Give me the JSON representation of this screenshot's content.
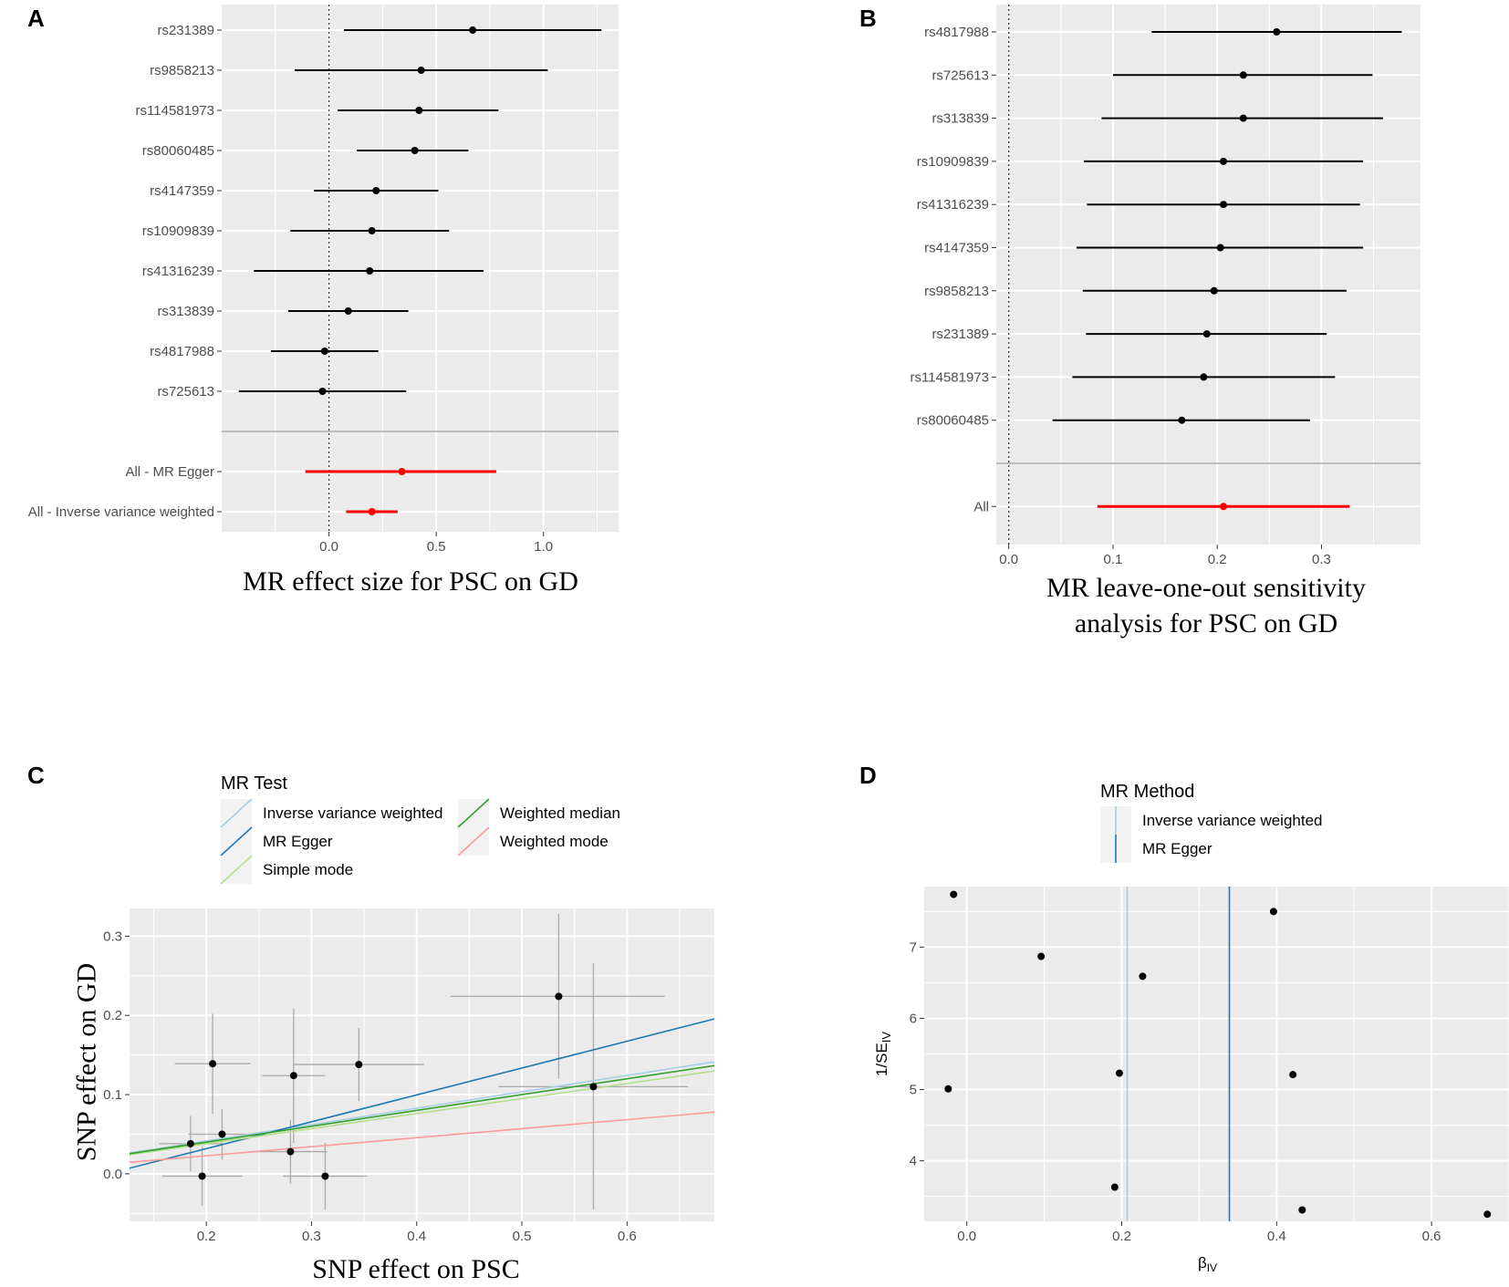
{
  "panels": {
    "a": {
      "letter": "A",
      "xtitle": "MR effect size for PSC on GD"
    },
    "b": {
      "letter": "B",
      "xtitle_line1": "MR leave-one-out sensitivity",
      "xtitle_line2": "analysis for PSC on GD"
    },
    "c": {
      "letter": "C",
      "xtitle": "SNP effect on PSC",
      "ytitle": "SNP effect on GD"
    },
    "d": {
      "letter": "D"
    }
  },
  "chart_data": [
    {
      "id": "A",
      "type": "forest",
      "title": "",
      "xlabel": "MR effect size for PSC on GD",
      "xlim": [
        -0.5,
        1.35
      ],
      "xticks": [
        0.0,
        0.5,
        1.0
      ],
      "xtick_labels": [
        "0.0",
        "0.5",
        "1.0"
      ],
      "reference_line": 0,
      "rows": [
        {
          "label": "rs231389",
          "est": 0.67,
          "lo": 0.07,
          "hi": 1.27,
          "color": "#000000"
        },
        {
          "label": "rs9858213",
          "est": 0.43,
          "lo": -0.16,
          "hi": 1.02,
          "color": "#000000"
        },
        {
          "label": "rs114581973",
          "est": 0.42,
          "lo": 0.04,
          "hi": 0.79,
          "color": "#000000"
        },
        {
          "label": "rs80060485",
          "est": 0.4,
          "lo": 0.13,
          "hi": 0.65,
          "color": "#000000"
        },
        {
          "label": "rs4147359",
          "est": 0.22,
          "lo": -0.07,
          "hi": 0.51,
          "color": "#000000"
        },
        {
          "label": "rs10909839",
          "est": 0.2,
          "lo": -0.18,
          "hi": 0.56,
          "color": "#000000"
        },
        {
          "label": "rs41316239",
          "est": 0.19,
          "lo": -0.35,
          "hi": 0.72,
          "color": "#000000"
        },
        {
          "label": "rs313839",
          "est": 0.09,
          "lo": -0.19,
          "hi": 0.37,
          "color": "#000000"
        },
        {
          "label": "rs4817988",
          "est": -0.02,
          "lo": -0.27,
          "hi": 0.23,
          "color": "#000000"
        },
        {
          "label": "rs725613",
          "est": -0.03,
          "lo": -0.42,
          "hi": 0.36,
          "color": "#000000"
        },
        {
          "label": "",
          "separator": true
        },
        {
          "label": "All - MR Egger",
          "est": 0.34,
          "lo": -0.11,
          "hi": 0.78,
          "color": "#ff0000"
        },
        {
          "label": "All - Inverse variance weighted",
          "est": 0.2,
          "lo": 0.08,
          "hi": 0.32,
          "color": "#ff0000"
        }
      ]
    },
    {
      "id": "B",
      "type": "forest",
      "title": "",
      "xlabel": "MR leave-one-out sensitivity analysis for PSC on GD",
      "xlim": [
        -0.012,
        0.395
      ],
      "xticks": [
        0.0,
        0.1,
        0.2,
        0.3
      ],
      "xtick_labels": [
        "0.0",
        "0.1",
        "0.2",
        "0.3"
      ],
      "reference_line": 0,
      "rows": [
        {
          "label": "rs4817988",
          "est": 0.257,
          "lo": 0.137,
          "hi": 0.377,
          "color": "#000000"
        },
        {
          "label": "rs725613",
          "est": 0.225,
          "lo": 0.1,
          "hi": 0.349,
          "color": "#000000"
        },
        {
          "label": "rs313839",
          "est": 0.225,
          "lo": 0.089,
          "hi": 0.359,
          "color": "#000000"
        },
        {
          "label": "rs10909839",
          "est": 0.206,
          "lo": 0.072,
          "hi": 0.34,
          "color": "#000000"
        },
        {
          "label": "rs41316239",
          "est": 0.206,
          "lo": 0.075,
          "hi": 0.337,
          "color": "#000000"
        },
        {
          "label": "rs4147359",
          "est": 0.203,
          "lo": 0.065,
          "hi": 0.34,
          "color": "#000000"
        },
        {
          "label": "rs9858213",
          "est": 0.197,
          "lo": 0.071,
          "hi": 0.324,
          "color": "#000000"
        },
        {
          "label": "rs231389",
          "est": 0.19,
          "lo": 0.074,
          "hi": 0.305,
          "color": "#000000"
        },
        {
          "label": "rs114581973",
          "est": 0.187,
          "lo": 0.061,
          "hi": 0.313,
          "color": "#000000"
        },
        {
          "label": "rs80060485",
          "est": 0.166,
          "lo": 0.042,
          "hi": 0.289,
          "color": "#000000"
        },
        {
          "label": "",
          "separator": true
        },
        {
          "label": "All",
          "est": 0.206,
          "lo": 0.085,
          "hi": 0.327,
          "color": "#ff0000"
        }
      ]
    },
    {
      "id": "C",
      "type": "scatter",
      "title": "",
      "xlabel": "SNP effect on PSC",
      "ylabel": "SNP effect on GD",
      "xlim": [
        0.127,
        0.683
      ],
      "ylim": [
        -0.06,
        0.335
      ],
      "xticks": [
        0.2,
        0.3,
        0.4,
        0.5,
        0.6
      ],
      "yticks": [
        0.0,
        0.1,
        0.2,
        0.3
      ],
      "legend_title": "MR Test",
      "legend_position": "top",
      "points": [
        {
          "x": 0.535,
          "y": 0.224,
          "xlo": 0.432,
          "xhi": 0.636,
          "ylo": 0.12,
          "yhi": 0.328
        },
        {
          "x": 0.568,
          "y": 0.11,
          "xlo": 0.478,
          "xhi": 0.658,
          "ylo": -0.045,
          "yhi": 0.266
        },
        {
          "x": 0.206,
          "y": 0.139,
          "xlo": 0.17,
          "xhi": 0.242,
          "ylo": 0.076,
          "yhi": 0.202
        },
        {
          "x": 0.345,
          "y": 0.138,
          "xlo": 0.283,
          "xhi": 0.407,
          "ylo": 0.092,
          "yhi": 0.184
        },
        {
          "x": 0.283,
          "y": 0.124,
          "xlo": 0.253,
          "xhi": 0.313,
          "ylo": 0.039,
          "yhi": 0.209
        },
        {
          "x": 0.215,
          "y": 0.05,
          "xlo": 0.183,
          "xhi": 0.247,
          "ylo": 0.018,
          "yhi": 0.082
        },
        {
          "x": 0.185,
          "y": 0.038,
          "xlo": 0.155,
          "xhi": 0.215,
          "ylo": 0.003,
          "yhi": 0.073
        },
        {
          "x": 0.28,
          "y": 0.028,
          "xlo": 0.245,
          "xhi": 0.315,
          "ylo": -0.012,
          "yhi": 0.068
        },
        {
          "x": 0.196,
          "y": -0.003,
          "xlo": 0.158,
          "xhi": 0.234,
          "ylo": -0.04,
          "yhi": 0.034
        },
        {
          "x": 0.313,
          "y": -0.003,
          "xlo": 0.273,
          "xhi": 0.353,
          "ylo": -0.045,
          "yhi": 0.039
        }
      ],
      "series": [
        {
          "name": "Inverse variance weighted",
          "slope": 0.207,
          "intercept": 0.0,
          "color": "#a6cee3"
        },
        {
          "name": "MR Egger",
          "slope": 0.339,
          "intercept": -0.036,
          "color": "#1f78b4"
        },
        {
          "name": "Simple mode",
          "slope": 0.19,
          "intercept": 0.0,
          "color": "#b2df8a"
        },
        {
          "name": "Weighted median",
          "slope": 0.2,
          "intercept": 0.0,
          "color": "#33a02c"
        },
        {
          "name": "Weighted mode",
          "slope": 0.114,
          "intercept": 0.0,
          "color": "#fb9a99"
        }
      ]
    },
    {
      "id": "D",
      "type": "scatter",
      "title": "",
      "xlabel": "β",
      "xlabel_sub": "IV",
      "ylabel": "1/SE",
      "ylabel_sub": "IV",
      "xlim": [
        -0.055,
        0.7
      ],
      "ylim": [
        3.15,
        7.85
      ],
      "xticks": [
        0.0,
        0.2,
        0.4,
        0.6
      ],
      "xtick_labels": [
        "0.0",
        "0.2",
        "0.4",
        "0.6"
      ],
      "yticks": [
        4,
        5,
        6,
        7
      ],
      "legend_title": "MR Method",
      "legend_position": "top",
      "points": [
        {
          "x": -0.017,
          "y": 7.74
        },
        {
          "x": 0.396,
          "y": 7.5
        },
        {
          "x": 0.096,
          "y": 6.87
        },
        {
          "x": 0.227,
          "y": 6.59
        },
        {
          "x": 0.197,
          "y": 5.23
        },
        {
          "x": 0.421,
          "y": 5.21
        },
        {
          "x": -0.024,
          "y": 5.01
        },
        {
          "x": 0.191,
          "y": 3.63
        },
        {
          "x": 0.433,
          "y": 3.31
        },
        {
          "x": 0.672,
          "y": 3.25
        }
      ],
      "series": [
        {
          "name": "Inverse variance weighted",
          "xintercept": 0.207,
          "color": "#a6cee3"
        },
        {
          "name": "MR Egger",
          "xintercept": 0.339,
          "color": "#1f78b4"
        }
      ]
    }
  ]
}
